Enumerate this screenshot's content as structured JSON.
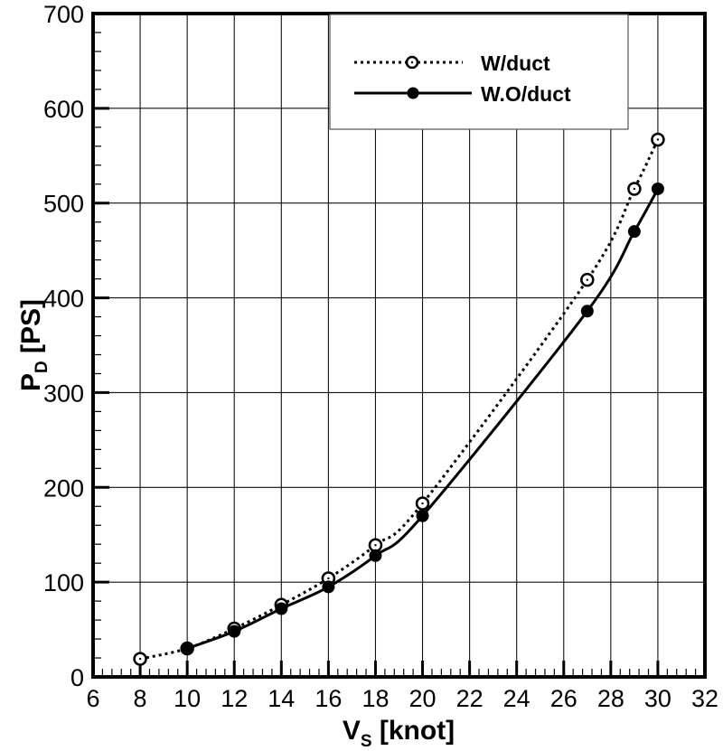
{
  "chart_data": {
    "type": "line",
    "title": "",
    "xlabel": "V_S [knot]",
    "ylabel": "P_D [PS]",
    "xlabel_parts": {
      "main": "V",
      "sub": "S",
      "rest": " [knot]"
    },
    "ylabel_parts": {
      "main": "P",
      "sub": "D",
      "rest": " [PS]"
    },
    "xlim": [
      6,
      32
    ],
    "ylim": [
      0,
      700
    ],
    "xticks": [
      6,
      8,
      10,
      12,
      14,
      16,
      18,
      20,
      22,
      24,
      26,
      28,
      30,
      32
    ],
    "yticks": [
      0,
      100,
      200,
      300,
      400,
      500,
      600,
      700
    ],
    "grid": true,
    "legend_position": "upper center",
    "series": [
      {
        "name": "W/duct",
        "line_style": "dotted",
        "marker": "open-circle",
        "x": [
          8,
          10,
          12,
          14,
          16,
          18,
          20,
          27,
          29,
          30
        ],
        "values": [
          19,
          30,
          51,
          76,
          104,
          139,
          183,
          419,
          515,
          567
        ]
      },
      {
        "name": "W.O/duct",
        "line_style": "solid",
        "marker": "filled-circle",
        "x": [
          10,
          12,
          14,
          16,
          18,
          20,
          27,
          29,
          30
        ],
        "values": [
          30,
          48,
          72,
          95,
          128,
          170,
          386,
          470,
          515
        ]
      }
    ]
  },
  "colors": {
    "line": "#000000",
    "grid": "#000000",
    "background": "#ffffff"
  }
}
